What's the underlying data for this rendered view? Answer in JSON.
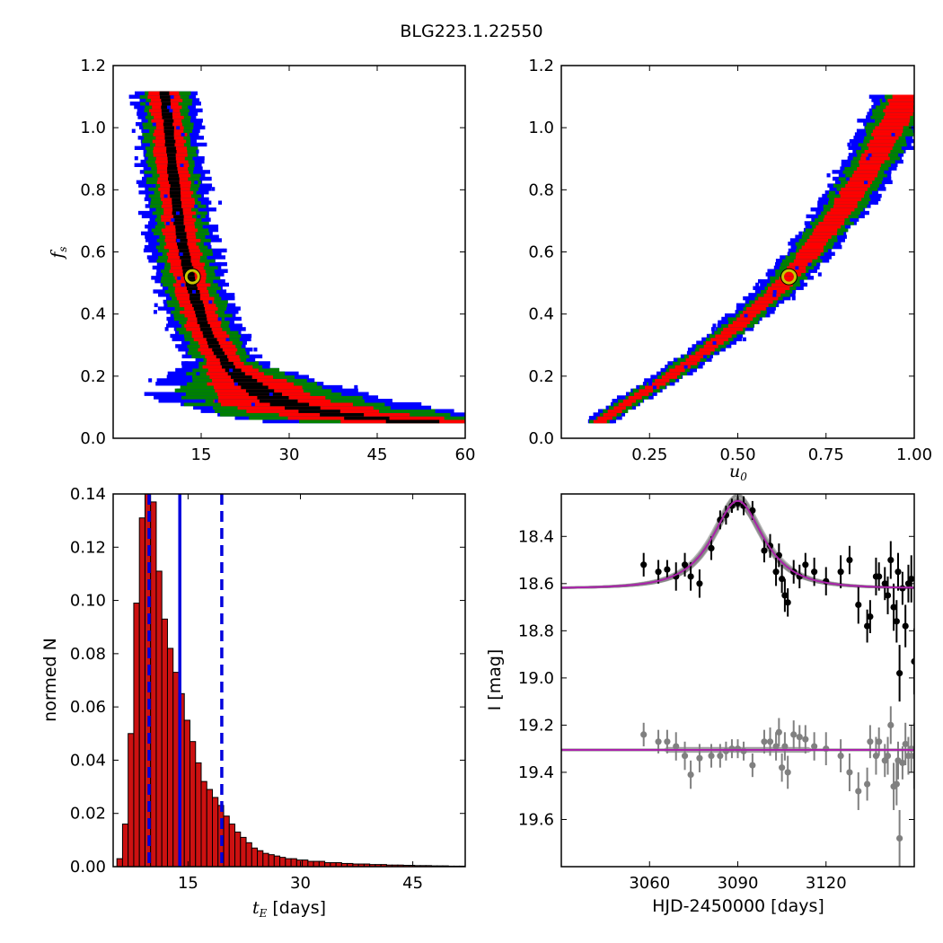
{
  "title": "BLG223.1.22550",
  "colors": {
    "sigma1": "#000000",
    "sigma2": "#ff0000",
    "sigma3": "#008000",
    "sigma4": "#0000ff",
    "best": "#c8c800",
    "model": "#aa22aa",
    "data_main": "#000000",
    "data_sec": "#808080",
    "bar": "#cc1111",
    "vline": "#0000dd"
  },
  "chart_data": [
    {
      "type": "heatmap",
      "panel": "top-left",
      "xlabel": "",
      "ylabel_main": "f",
      "ylabel_sub": "s",
      "xlim": [
        0,
        60
      ],
      "ylim": [
        0,
        1.2
      ],
      "xticks": [
        15,
        30,
        45,
        60
      ],
      "xtick_labels": [
        "15",
        "30",
        "45",
        "60"
      ],
      "yticks": [
        0,
        0.2,
        0.4,
        0.6,
        0.8,
        1.0,
        1.2
      ],
      "ytick_labels": [
        "0.0",
        "0.2",
        "0.4",
        "0.6",
        "0.8",
        "1.0",
        "1.2"
      ],
      "best_fit": {
        "x": 13.5,
        "y": 0.52
      },
      "ridge": [
        [
          8.7,
          1.11
        ],
        [
          9.5,
          1.0
        ],
        [
          10.2,
          0.85
        ],
        [
          11.0,
          0.72
        ],
        [
          11.8,
          0.62
        ],
        [
          12.6,
          0.55
        ],
        [
          13.4,
          0.49
        ],
        [
          14.3,
          0.43
        ],
        [
          15.3,
          0.37
        ],
        [
          16.5,
          0.32
        ],
        [
          18.0,
          0.27
        ],
        [
          20.0,
          0.22
        ],
        [
          22.5,
          0.18
        ],
        [
          25.5,
          0.14
        ],
        [
          29.0,
          0.11
        ],
        [
          33.0,
          0.09
        ],
        [
          38.0,
          0.075
        ],
        [
          44.0,
          0.06
        ],
        [
          51.0,
          0.05
        ]
      ]
    },
    {
      "type": "heatmap",
      "panel": "top-right",
      "xlabel_main": "u",
      "xlabel_sub": "0",
      "ylabel": "",
      "xlim": [
        0,
        1.0
      ],
      "ylim": [
        0,
        1.2
      ],
      "xticks": [
        0.25,
        0.5,
        0.75,
        1.0
      ],
      "xtick_labels": [
        "0.25",
        "0.50",
        "0.75",
        "1.00"
      ],
      "yticks": [
        0,
        0.2,
        0.4,
        0.6,
        0.8,
        1.0,
        1.2
      ],
      "ytick_labels": [
        "0.0",
        "0.2",
        "0.4",
        "0.6",
        "0.8",
        "1.0",
        "1.2"
      ],
      "best_fit": {
        "x": 0.645,
        "y": 0.52
      },
      "ridge": [
        [
          0.11,
          0.05
        ],
        [
          0.2,
          0.12
        ],
        [
          0.3,
          0.19
        ],
        [
          0.4,
          0.27
        ],
        [
          0.5,
          0.36
        ],
        [
          0.6,
          0.46
        ],
        [
          0.65,
          0.52
        ],
        [
          0.7,
          0.59
        ],
        [
          0.8,
          0.74
        ],
        [
          0.9,
          0.92
        ],
        [
          0.98,
          1.1
        ]
      ]
    },
    {
      "type": "bar",
      "panel": "bottom-left",
      "xlabel_main": "t",
      "xlabel_sub": "E",
      "xlabel_rest": "[days]",
      "ylabel": "normed N",
      "xlim": [
        5,
        52
      ],
      "ylim": [
        0,
        0.14
      ],
      "xticks": [
        15,
        30,
        45
      ],
      "xtick_labels": [
        "15",
        "30",
        "45"
      ],
      "yticks": [
        0,
        0.02,
        0.04,
        0.06,
        0.08,
        0.1,
        0.12,
        0.14
      ],
      "ytick_labels": [
        "0.00",
        "0.02",
        "0.04",
        "0.06",
        "0.08",
        "0.10",
        "0.12",
        "0.14"
      ],
      "bin_start": 5.5,
      "bin_width": 0.75,
      "values": [
        0.003,
        0.016,
        0.05,
        0.099,
        0.131,
        0.141,
        0.137,
        0.111,
        0.093,
        0.082,
        0.073,
        0.065,
        0.055,
        0.047,
        0.039,
        0.032,
        0.029,
        0.026,
        0.023,
        0.019,
        0.016,
        0.013,
        0.011,
        0.009,
        0.007,
        0.006,
        0.005,
        0.0045,
        0.004,
        0.0035,
        0.003,
        0.003,
        0.0025,
        0.0025,
        0.002,
        0.002,
        0.002,
        0.0015,
        0.0015,
        0.0015,
        0.0012,
        0.0012,
        0.001,
        0.001,
        0.001,
        0.0008,
        0.0008,
        0.0008,
        0.0006,
        0.0006,
        0.0006,
        0.0005,
        0.0005,
        0.0004,
        0.0004,
        0.0004,
        0.0003,
        0.0003,
        0.0003,
        0.0002,
        0.0002,
        0.0002
      ],
      "median": 13.9,
      "lower": 9.8,
      "upper": 19.5
    },
    {
      "type": "line",
      "panel": "bottom-right",
      "xlabel": "HJD-2450000 [days]",
      "ylabel": "I [mag]",
      "xlim": [
        3030,
        3150
      ],
      "ylim": [
        19.8,
        18.22
      ],
      "xticks": [
        3060,
        3090,
        3120
      ],
      "xtick_labels": [
        "3060",
        "3090",
        "3120"
      ],
      "yticks": [
        18.4,
        18.6,
        18.8,
        19.0,
        19.2,
        19.4,
        19.6
      ],
      "ytick_labels": [
        "18.4",
        "18.6",
        "18.8",
        "19.0",
        "19.2",
        "19.4",
        "19.6"
      ],
      "model": {
        "t0": 3090,
        "tE": 13.9,
        "u0": 0.645,
        "fs": 0.52,
        "base_mag": 18.62
      },
      "secondary_base": 19.305,
      "points_main": [
        [
          3058,
          18.52,
          0.05
        ],
        [
          3063,
          18.55,
          0.05
        ],
        [
          3066,
          18.54,
          0.04
        ],
        [
          3069,
          18.57,
          0.06
        ],
        [
          3072,
          18.52,
          0.05
        ],
        [
          3074,
          18.57,
          0.06
        ],
        [
          3077,
          18.6,
          0.06
        ],
        [
          3081,
          18.45,
          0.05
        ],
        [
          3084,
          18.33,
          0.04
        ],
        [
          3086,
          18.31,
          0.04
        ],
        [
          3088,
          18.27,
          0.03
        ],
        [
          3090,
          18.26,
          0.03
        ],
        [
          3092,
          18.27,
          0.04
        ],
        [
          3095,
          18.29,
          0.04
        ],
        [
          3099,
          18.46,
          0.05
        ],
        [
          3101,
          18.44,
          0.05
        ],
        [
          3103,
          18.55,
          0.06
        ],
        [
          3104,
          18.48,
          0.05
        ],
        [
          3105,
          18.58,
          0.06
        ],
        [
          3106,
          18.65,
          0.07
        ],
        [
          3107,
          18.68,
          0.06
        ],
        [
          3109,
          18.55,
          0.05
        ],
        [
          3111,
          18.57,
          0.05
        ],
        [
          3113,
          18.52,
          0.05
        ],
        [
          3116,
          18.55,
          0.06
        ],
        [
          3120,
          18.59,
          0.06
        ],
        [
          3125,
          18.55,
          0.07
        ],
        [
          3128,
          18.5,
          0.06
        ],
        [
          3131,
          18.69,
          0.08
        ],
        [
          3134,
          18.78,
          0.07
        ],
        [
          3135,
          18.74,
          0.07
        ],
        [
          3137,
          18.57,
          0.08
        ],
        [
          3138,
          18.57,
          0.06
        ],
        [
          3140,
          18.6,
          0.07
        ],
        [
          3141,
          18.65,
          0.08
        ],
        [
          3142,
          18.5,
          0.08
        ],
        [
          3143,
          18.7,
          0.1
        ],
        [
          3144,
          18.76,
          0.09
        ],
        [
          3144.5,
          18.55,
          0.08
        ],
        [
          3145,
          18.98,
          0.12
        ],
        [
          3146,
          18.62,
          0.07
        ],
        [
          3147,
          18.78,
          0.09
        ],
        [
          3148,
          18.6,
          0.08
        ],
        [
          3149,
          18.58,
          0.1
        ],
        [
          3150,
          18.93,
          0.14
        ]
      ],
      "points_sec": [
        [
          3058,
          19.24,
          0.05
        ],
        [
          3063,
          19.27,
          0.05
        ],
        [
          3066,
          19.27,
          0.05
        ],
        [
          3069,
          19.29,
          0.06
        ],
        [
          3072,
          19.33,
          0.06
        ],
        [
          3074,
          19.41,
          0.06
        ],
        [
          3077,
          19.34,
          0.06
        ],
        [
          3081,
          19.33,
          0.05
        ],
        [
          3084,
          19.33,
          0.05
        ],
        [
          3086,
          19.31,
          0.04
        ],
        [
          3088,
          19.3,
          0.04
        ],
        [
          3090,
          19.3,
          0.04
        ],
        [
          3092,
          19.31,
          0.04
        ],
        [
          3095,
          19.37,
          0.05
        ],
        [
          3099,
          19.27,
          0.05
        ],
        [
          3101,
          19.27,
          0.06
        ],
        [
          3103,
          19.29,
          0.06
        ],
        [
          3104,
          19.23,
          0.06
        ],
        [
          3105,
          19.38,
          0.06
        ],
        [
          3106,
          19.29,
          0.06
        ],
        [
          3107,
          19.4,
          0.07
        ],
        [
          3109,
          19.24,
          0.06
        ],
        [
          3111,
          19.25,
          0.05
        ],
        [
          3113,
          19.26,
          0.06
        ],
        [
          3116,
          19.29,
          0.06
        ],
        [
          3120,
          19.3,
          0.07
        ],
        [
          3125,
          19.33,
          0.07
        ],
        [
          3128,
          19.4,
          0.08
        ],
        [
          3131,
          19.48,
          0.08
        ],
        [
          3134,
          19.45,
          0.07
        ],
        [
          3135,
          19.27,
          0.07
        ],
        [
          3137,
          19.33,
          0.08
        ],
        [
          3138,
          19.27,
          0.06
        ],
        [
          3140,
          19.35,
          0.07
        ],
        [
          3141,
          19.33,
          0.08
        ],
        [
          3142,
          19.2,
          0.08
        ],
        [
          3143,
          19.46,
          0.1
        ],
        [
          3144,
          19.45,
          0.09
        ],
        [
          3144.5,
          19.35,
          0.08
        ],
        [
          3145,
          19.68,
          0.12
        ],
        [
          3146,
          19.36,
          0.07
        ],
        [
          3147,
          19.28,
          0.09
        ],
        [
          3148,
          19.33,
          0.08
        ],
        [
          3149,
          19.3,
          0.1
        ],
        [
          3150,
          19.33,
          0.14
        ]
      ]
    }
  ]
}
